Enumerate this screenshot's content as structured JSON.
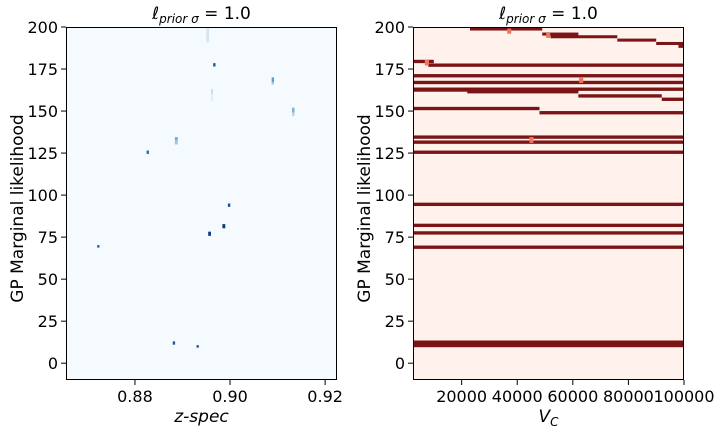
{
  "chart_data": [
    {
      "type": "heatmap",
      "title": "ℓ_{prior σ} = 1.0",
      "xlabel": "z-spec",
      "ylabel": "GP Marginal likelihood",
      "xlim": [
        0.8655,
        0.9225
      ],
      "ylim": [
        -10,
        200
      ],
      "xticks": [
        0.88,
        0.9,
        0.92
      ],
      "xtick_labels": [
        "0.88",
        "0.90",
        "0.92"
      ],
      "yticks": [
        0,
        25,
        50,
        75,
        100,
        125,
        150,
        175,
        200
      ],
      "colormap": "Blues",
      "background_color": "#f5fafe",
      "grid": false,
      "cells": [
        {
          "x": 0.8953,
          "y": 195.5,
          "w": 0.0006,
          "h": 9,
          "color": "#d4e6f4"
        },
        {
          "x": 0.8967,
          "y": 177.5,
          "w": 0.0005,
          "h": 2,
          "color": "#1f5a99"
        },
        {
          "x": 0.909,
          "y": 168.5,
          "w": 0.0005,
          "h": 3,
          "color": "#5a9ecf"
        },
        {
          "x": 0.909,
          "y": 166.5,
          "w": 0.0005,
          "h": 1.5,
          "color": "#a7cbe4"
        },
        {
          "x": 0.8962,
          "y": 161.5,
          "w": 0.0004,
          "h": 3,
          "color": "#c8dcef"
        },
        {
          "x": 0.8962,
          "y": 158,
          "w": 0.0004,
          "h": 4,
          "color": "#e0edf8"
        },
        {
          "x": 0.9133,
          "y": 150.5,
          "w": 0.0005,
          "h": 3,
          "color": "#74b3d8"
        },
        {
          "x": 0.9133,
          "y": 148,
          "w": 0.0005,
          "h": 2,
          "color": "#b5d4ea"
        },
        {
          "x": 0.8887,
          "y": 133.5,
          "w": 0.0006,
          "h": 2,
          "color": "#6aaed6"
        },
        {
          "x": 0.8887,
          "y": 131.3,
          "w": 0.0006,
          "h": 2.4,
          "color": "#9ac8e0"
        },
        {
          "x": 0.8827,
          "y": 125.5,
          "w": 0.0005,
          "h": 2,
          "color": "#2a6cab"
        },
        {
          "x": 0.8998,
          "y": 94,
          "w": 0.0005,
          "h": 2,
          "color": "#174f8f"
        },
        {
          "x": 0.8987,
          "y": 81.5,
          "w": 0.0006,
          "h": 2.5,
          "color": "#083b7a"
        },
        {
          "x": 0.8957,
          "y": 77,
          "w": 0.0006,
          "h": 2.5,
          "color": "#0c4587"
        },
        {
          "x": 0.8723,
          "y": 69.5,
          "w": 0.0005,
          "h": 1.5,
          "color": "#2567a8"
        },
        {
          "x": 0.8882,
          "y": 12,
          "w": 0.0005,
          "h": 2,
          "color": "#1c5a9c"
        },
        {
          "x": 0.8932,
          "y": 10,
          "w": 0.0005,
          "h": 1.5,
          "color": "#1d5b9c"
        }
      ]
    },
    {
      "type": "heatmap",
      "title": "ℓ_{prior σ} = 1.0",
      "xlabel": "V_C",
      "ylabel": "GP Marginal likelihood",
      "xlim": [
        2500,
        100000
      ],
      "ylim": [
        -10,
        200
      ],
      "xticks": [
        20000,
        40000,
        60000,
        80000,
        100000
      ],
      "xtick_labels": [
        "20000",
        "40000",
        "60000",
        "80000",
        "100000"
      ],
      "yticks": [
        0,
        25,
        50,
        75,
        100,
        125,
        150,
        175,
        200
      ],
      "colormap": "Reds",
      "background_color": "#fff2ec",
      "grid": false,
      "band_color": "#7b1416",
      "highlight_color": "#f2755a",
      "bands": [
        {
          "x0": 23000,
          "x1": 49000,
          "y": 198.8,
          "h": 1.8
        },
        {
          "x0": 49000,
          "x1": 62000,
          "y": 195.8,
          "h": 1.8
        },
        {
          "x0": 52000,
          "x1": 76000,
          "y": 194.2,
          "h": 1.8
        },
        {
          "x0": 76000,
          "x1": 90000,
          "y": 192.2,
          "h": 1.8
        },
        {
          "x0": 90000,
          "x1": 100000,
          "y": 190.2,
          "h": 1.8
        },
        {
          "x0": 98000,
          "x1": 100000,
          "y": 188.5,
          "h": 1.8
        },
        {
          "x0": 2500,
          "x1": 10000,
          "y": 179.5,
          "h": 2
        },
        {
          "x0": 8000,
          "x1": 100000,
          "y": 177.3,
          "h": 2
        },
        {
          "x0": 2500,
          "x1": 100000,
          "y": 171,
          "h": 2
        },
        {
          "x0": 2500,
          "x1": 100000,
          "y": 167,
          "h": 2
        },
        {
          "x0": 2500,
          "x1": 100000,
          "y": 163,
          "h": 2
        },
        {
          "x0": 2500,
          "x1": 22000,
          "y": 162.5,
          "h": 2
        },
        {
          "x0": 22000,
          "x1": 62000,
          "y": 161.5,
          "h": 2
        },
        {
          "x0": 62000,
          "x1": 92000,
          "y": 159,
          "h": 2
        },
        {
          "x0": 92000,
          "x1": 100000,
          "y": 157,
          "h": 2
        },
        {
          "x0": 2500,
          "x1": 48000,
          "y": 151.5,
          "h": 2
        },
        {
          "x0": 48000,
          "x1": 100000,
          "y": 149,
          "h": 2
        },
        {
          "x0": 2500,
          "x1": 100000,
          "y": 134.5,
          "h": 2
        },
        {
          "x0": 2500,
          "x1": 100000,
          "y": 131.5,
          "h": 2
        },
        {
          "x0": 2500,
          "x1": 100000,
          "y": 125.5,
          "h": 2
        },
        {
          "x0": 2500,
          "x1": 100000,
          "y": 94.5,
          "h": 2
        },
        {
          "x0": 2500,
          "x1": 100000,
          "y": 82,
          "h": 2
        },
        {
          "x0": 2500,
          "x1": 100000,
          "y": 77.5,
          "h": 2
        },
        {
          "x0": 2500,
          "x1": 100000,
          "y": 69,
          "h": 2
        },
        {
          "x0": 2500,
          "x1": 100000,
          "y": 11.5,
          "h": 4
        }
      ],
      "highlights": [
        {
          "x": 37000,
          "y": 197.5,
          "w": 1200,
          "h": 3
        },
        {
          "x": 51000,
          "y": 195,
          "w": 1200,
          "h": 3
        },
        {
          "x": 7500,
          "y": 178.8,
          "w": 1500,
          "h": 3.5
        },
        {
          "x": 63000,
          "y": 168.5,
          "w": 1500,
          "h": 3.5
        },
        {
          "x": 45000,
          "y": 132.8,
          "w": 1200,
          "h": 3.5
        }
      ]
    }
  ]
}
